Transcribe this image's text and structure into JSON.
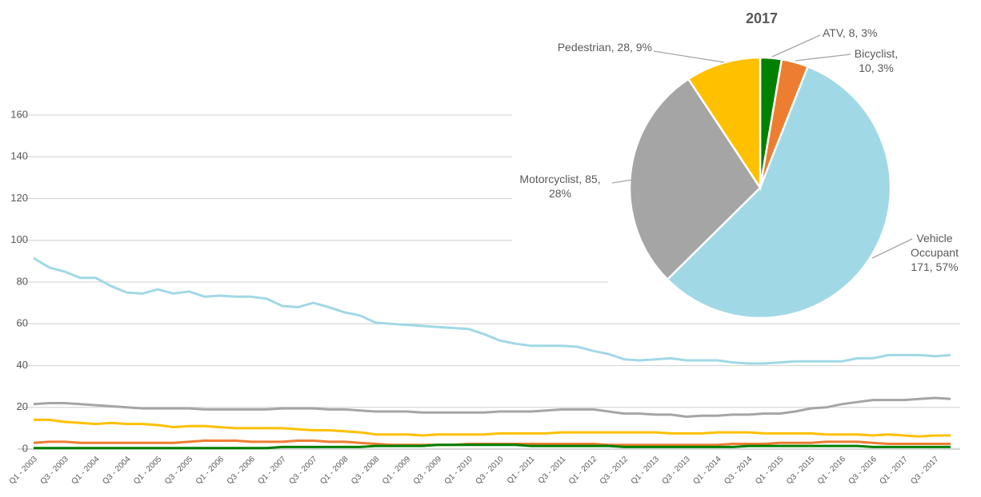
{
  "chart_data": [
    {
      "type": "line",
      "categories": [
        "Q1 - 2003",
        null,
        "Q3 - 2003",
        null,
        "Q1 - 2004",
        null,
        "Q3 - 2004",
        null,
        "Q1 - 2005",
        null,
        "Q3 - 2005",
        null,
        "Q1 - 2006",
        null,
        "Q3 - 2006",
        null,
        "Q1 - 2007",
        null,
        "Q3 - 2007",
        null,
        "Q1 - 2008",
        null,
        "Q3 - 2008",
        null,
        "Q1 - 2009",
        null,
        "Q3 - 2009",
        null,
        "Q1 - 2010",
        null,
        "Q3 - 2010",
        null,
        "Q1 - 2011",
        null,
        "Q3 - 2011",
        null,
        "Q1 - 2012",
        null,
        "Q3 - 2012",
        null,
        "Q1 - 2013",
        null,
        "Q3 - 2013",
        null,
        "Q1 - 2014",
        null,
        "Q3 - 2014",
        null,
        "Q1 - 2015",
        null,
        "Q3 - 2015",
        null,
        "Q1 - 2016",
        null,
        "Q3 - 2016",
        null,
        "Q1 - 2017",
        null,
        "Q3 - 2017",
        null
      ],
      "series": [
        {
          "color": "#a1d8e6",
          "values": [
            91.5,
            87,
            85,
            82,
            82,
            78,
            75,
            74.5,
            76.5,
            74.5,
            75.5,
            73,
            73.5,
            73,
            73,
            72,
            68.5,
            68,
            70,
            68,
            65.5,
            64,
            60.5,
            60,
            59.5,
            59,
            58.5,
            58,
            57.5,
            55,
            52,
            50.5,
            49.5,
            49.5,
            49.5,
            49,
            47,
            45.5,
            43,
            42.5,
            43,
            43.5,
            42.5,
            42.5,
            42.5,
            41.5,
            41,
            41,
            41.5,
            42,
            42,
            42,
            42,
            43.5,
            43.5,
            45,
            45,
            45,
            44.5,
            45
          ]
        },
        {
          "color": "#a5a5a5",
          "values": [
            21.5,
            22,
            22,
            21.5,
            21,
            20.5,
            20,
            19.5,
            19.5,
            19.5,
            19.5,
            19,
            19,
            19,
            19,
            19,
            19.5,
            19.5,
            19.5,
            19,
            19,
            18.5,
            18,
            18,
            18,
            17.5,
            17.5,
            17.5,
            17.5,
            17.5,
            18,
            18,
            18,
            18.5,
            19,
            19,
            19,
            18,
            17,
            17,
            16.5,
            16.5,
            15.5,
            16,
            16,
            16.5,
            16.5,
            17,
            17,
            18,
            19.5,
            20,
            21.5,
            22.5,
            23.5,
            23.5,
            23.5,
            24,
            24.5,
            24
          ]
        },
        {
          "color": "#ffc000",
          "values": [
            14,
            14,
            13,
            12.5,
            12,
            12.5,
            12,
            12,
            11.5,
            10.5,
            11,
            11,
            10.5,
            10,
            10,
            10,
            10,
            9.5,
            9,
            9,
            8.5,
            8,
            7,
            7,
            7,
            6.5,
            7,
            7,
            7,
            7,
            7.5,
            7.5,
            7.5,
            7.5,
            8,
            8,
            8,
            8,
            8,
            8,
            8,
            7.5,
            7.5,
            7.5,
            8,
            8,
            8,
            7.5,
            7.5,
            7.5,
            7.5,
            7,
            7,
            7,
            6.5,
            7,
            6.5,
            6,
            6.5,
            6.5
          ]
        },
        {
          "color": "#ed7d31",
          "values": [
            3,
            3.5,
            3.5,
            3,
            3,
            3,
            3,
            3,
            3,
            3,
            3.5,
            4,
            4,
            4,
            3.5,
            3.5,
            3.5,
            4,
            4,
            3.5,
            3.5,
            3,
            2.5,
            2,
            2,
            2,
            2,
            2,
            2.5,
            2.5,
            2.5,
            2.5,
            2.5,
            2.5,
            2.5,
            2.5,
            2.5,
            2,
            2,
            2,
            2,
            2,
            2,
            2,
            2,
            2.5,
            2.5,
            2.5,
            3,
            3,
            3,
            3.5,
            3.5,
            3.5,
            3,
            2.5,
            2.5,
            2.5,
            2.5,
            2.5
          ]
        },
        {
          "color": "#008000",
          "values": [
            0.5,
            0.5,
            0.5,
            0.5,
            0.5,
            0.5,
            0.5,
            0.5,
            0.5,
            0.5,
            0.5,
            0.5,
            0.5,
            0.5,
            0.5,
            0.5,
            1,
            1,
            1,
            1,
            1,
            1,
            1.5,
            1.5,
            1.5,
            1.5,
            2,
            2,
            2,
            2,
            2,
            2,
            1.5,
            1.5,
            1.5,
            1.5,
            1.5,
            1.5,
            1,
            1,
            1,
            1,
            1,
            1,
            1,
            1,
            1.5,
            1.5,
            1.5,
            1.5,
            1.5,
            1.5,
            1.5,
            1.5,
            1,
            1,
            1,
            1,
            1,
            1
          ]
        }
      ],
      "ylim": [
        0,
        160
      ],
      "yticks": [
        0,
        20,
        40,
        60,
        80,
        100,
        120,
        140,
        160
      ],
      "grid": true
    },
    {
      "type": "pie",
      "title": "2017",
      "values": [
        8,
        10,
        171,
        85,
        28
      ],
      "value_labels": [
        "ATV, 8, 3%",
        "Bicyclist,\n10, 3%",
        "Vehicle\nOccupant\n171, 57%",
        "Motorcyclist, 85,\n28%",
        "Pedestrian, 28, 9%"
      ],
      "colors": [
        "#008000",
        "#ed7d31",
        "#a1d8e6",
        "#a5a5a5",
        "#ffc000"
      ]
    }
  ]
}
